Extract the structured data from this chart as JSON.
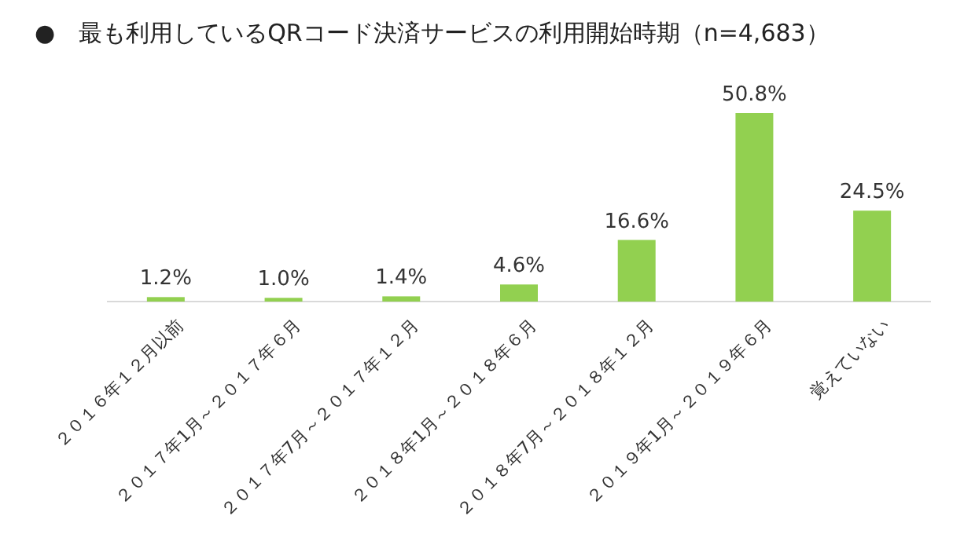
{
  "chart_data": {
    "type": "bar",
    "title": "●　最も利用しているQRコード決済サービスの利用開始時期（n=4,683）",
    "categories": [
      "２０１６年１２月以前",
      "２０１７年1月～２０１７年６月",
      "２０１７年7月～２０１７年１２月",
      "２０１８年1月～２０１８年６月",
      "２０１８年7月～２０１８年１２月",
      "２０１９年1月～２０１９年６月",
      "覚えていない"
    ],
    "values": [
      1.2,
      1.0,
      1.4,
      4.6,
      16.6,
      50.8,
      24.5
    ],
    "value_labels": [
      "1.2%",
      "1.0%",
      "1.4%",
      "4.6%",
      "16.6%",
      "50.8%",
      "24.5%"
    ],
    "color": "#92d050"
  }
}
